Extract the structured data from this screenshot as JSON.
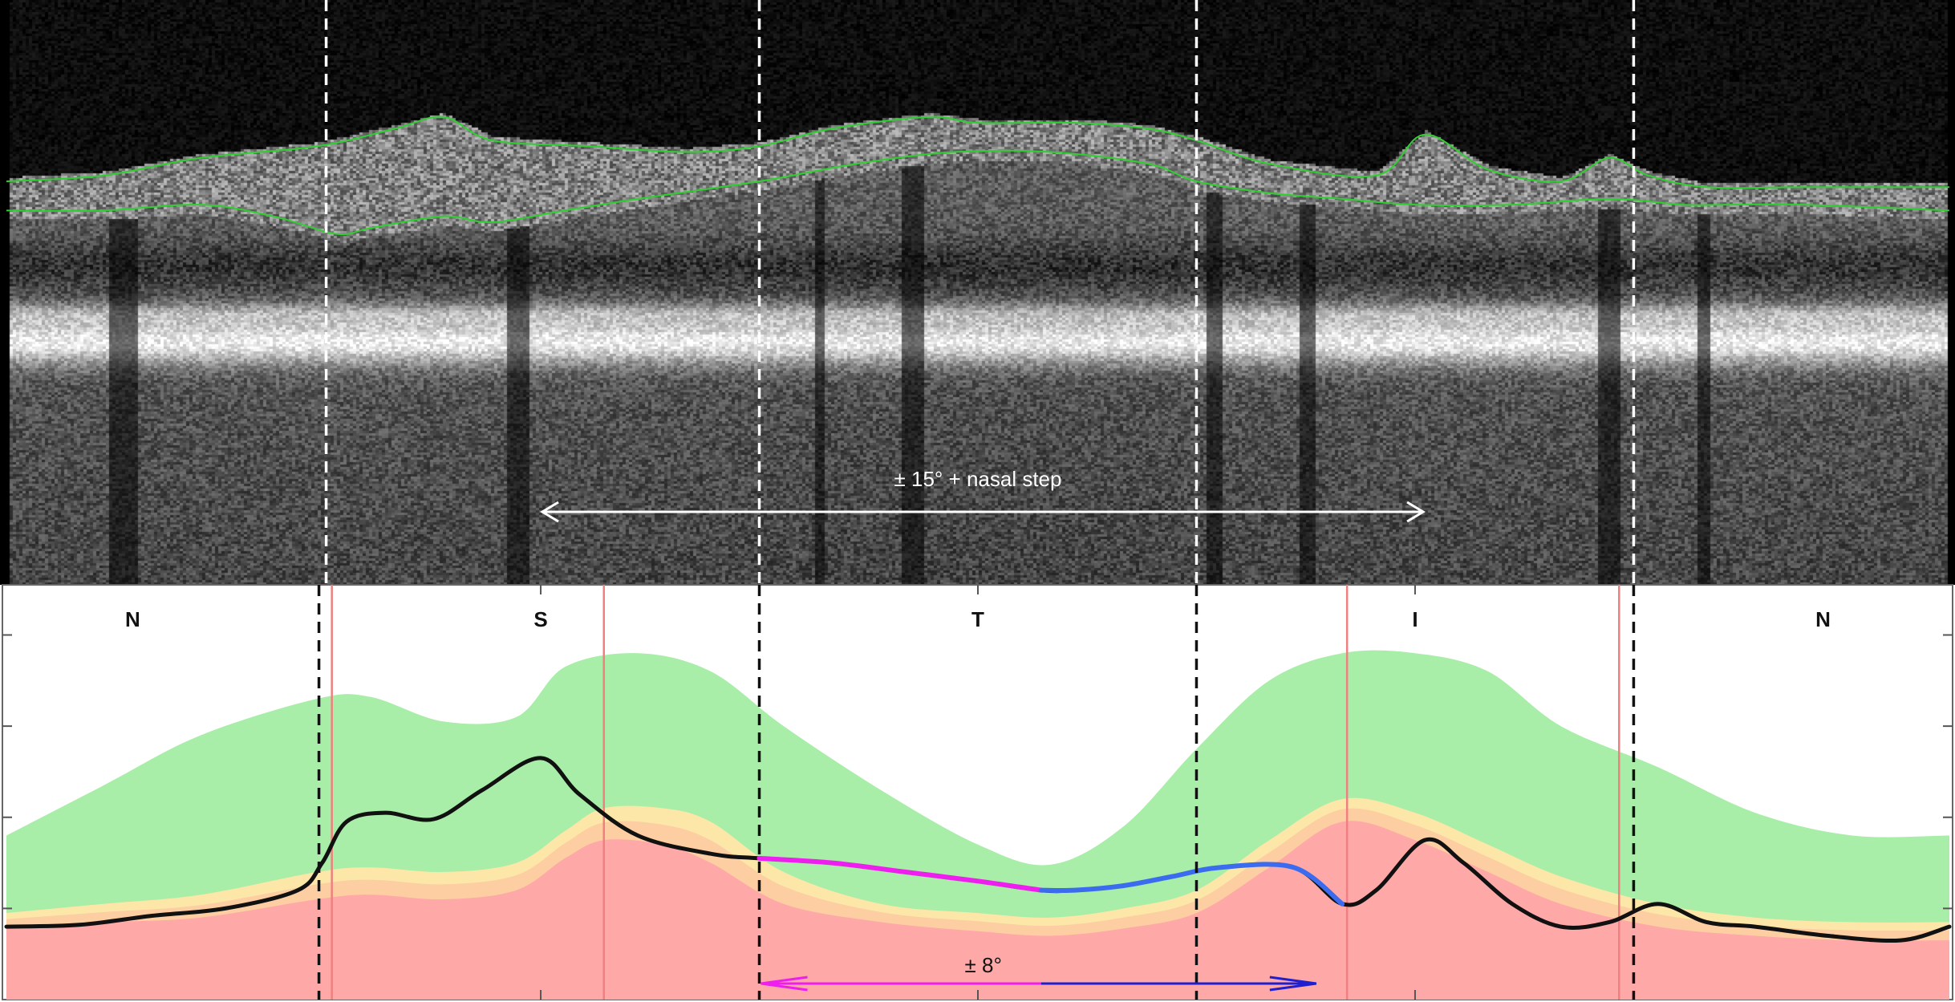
{
  "chart_data": {
    "type": "area",
    "title": "",
    "xlabel": "",
    "ylabel": "",
    "sector_labels": [
      {
        "label": "N",
        "x": 6
      },
      {
        "label": "S",
        "x": 90
      },
      {
        "label": "T",
        "x": 180
      },
      {
        "label": "I",
        "x": 270
      },
      {
        "label": "N",
        "x": 354
      }
    ],
    "sector_boundaries_x": [
      45,
      135,
      225,
      315
    ],
    "reference_lines_x": [
      47,
      103,
      256,
      312
    ],
    "xlim": [
      -20,
      380
    ],
    "ylim": [
      0,
      4.55
    ],
    "annotations": {
      "scan_range": "± 15° + nasal step",
      "arrow_range": "± 8°"
    },
    "series": [
      {
        "name": "",
        "role": "normal_range_upper",
        "color": "#a8eda8",
        "x": [
          -20,
          0,
          20,
          44,
          55,
          70,
          85,
          95,
          110,
          125,
          140,
          160,
          180,
          195,
          210,
          225,
          240,
          255,
          270,
          285,
          300,
          320,
          340,
          360,
          380
        ],
        "values": [
          1.8,
          2.35,
          2.9,
          3.3,
          3.32,
          3.05,
          3.1,
          3.65,
          3.8,
          3.6,
          3.0,
          2.3,
          1.7,
          1.48,
          1.9,
          2.75,
          3.5,
          3.8,
          3.8,
          3.6,
          3.0,
          2.55,
          2.05,
          1.8,
          1.8
        ]
      },
      {
        "name": "",
        "role": "borderline_band",
        "color": "#fde7a8",
        "x": [
          -20,
          0,
          20,
          44,
          55,
          70,
          85,
          95,
          103,
          115,
          125,
          140,
          160,
          180,
          195,
          210,
          225,
          240,
          255,
          270,
          285,
          300,
          320,
          340,
          360,
          380
        ],
        "values": [
          0.95,
          1.05,
          1.15,
          1.4,
          1.45,
          1.4,
          1.5,
          1.85,
          2.1,
          2.1,
          1.95,
          1.4,
          1.05,
          0.95,
          0.9,
          1.0,
          1.2,
          1.75,
          2.2,
          2.05,
          1.7,
          1.35,
          1.05,
          0.9,
          0.85,
          0.85
        ]
      },
      {
        "name": "",
        "role": "abnormal_band",
        "color": "#fea8a8",
        "x": [
          -20,
          0,
          20,
          44,
          55,
          70,
          85,
          95,
          103,
          115,
          125,
          140,
          160,
          180,
          195,
          210,
          225,
          240,
          255,
          270,
          285,
          300,
          320,
          340,
          360,
          380
        ],
        "values": [
          0.8,
          0.85,
          0.9,
          1.1,
          1.15,
          1.1,
          1.2,
          1.55,
          1.75,
          1.7,
          1.5,
          1.05,
          0.85,
          0.75,
          0.7,
          0.78,
          0.95,
          1.45,
          1.95,
          1.75,
          1.4,
          1.05,
          0.8,
          0.7,
          0.65,
          0.65
        ]
      },
      {
        "name": "",
        "role": "measured_profile",
        "color": "#111111",
        "x": [
          -20,
          -5,
          10,
          25,
          40,
          45,
          50,
          58,
          68,
          78,
          90,
          98,
          110,
          125,
          135,
          150,
          165,
          180,
          193,
          200,
          210,
          220,
          230,
          245,
          255,
          262,
          272,
          280,
          290,
          300,
          310,
          320,
          330,
          340,
          355,
          370,
          380
        ],
        "values": [
          0.8,
          0.82,
          0.92,
          1.0,
          1.2,
          1.5,
          1.95,
          2.05,
          1.98,
          2.3,
          2.65,
          2.25,
          1.8,
          1.6,
          1.55,
          1.5,
          1.4,
          1.3,
          1.2,
          1.2,
          1.25,
          1.35,
          1.45,
          1.45,
          1.05,
          1.2,
          1.75,
          1.5,
          1.05,
          0.8,
          0.85,
          1.05,
          0.85,
          0.8,
          0.7,
          0.65,
          0.8
        ]
      },
      {
        "name": "",
        "role": "highlight_left",
        "color": "#ee1fee",
        "x": [
          135,
          150,
          165,
          180,
          193
        ],
        "values": [
          1.55,
          1.5,
          1.4,
          1.3,
          1.2
        ]
      },
      {
        "name": "",
        "role": "highlight_right",
        "color": "#3b6cf0",
        "x": [
          193,
          200,
          210,
          220,
          230,
          245,
          255
        ],
        "values": [
          1.2,
          1.2,
          1.25,
          1.35,
          1.45,
          1.45,
          1.05
        ]
      }
    ],
    "boundary_traces": {
      "color": "#2fcf2f",
      "upper": {
        "x": [
          -20,
          0,
          20,
          44,
          60,
          70,
          80,
          100,
          120,
          135,
          150,
          170,
          180,
          200,
          215,
          225,
          240,
          262,
          272,
          285,
          300,
          310,
          318,
          330,
          350,
          380
        ],
        "y": [
          0.31,
          0.3,
          0.27,
          0.25,
          0.22,
          0.2,
          0.24,
          0.25,
          0.26,
          0.25,
          0.22,
          0.2,
          0.21,
          0.21,
          0.22,
          0.24,
          0.28,
          0.3,
          0.23,
          0.29,
          0.31,
          0.27,
          0.3,
          0.32,
          0.32,
          0.32
        ]
      },
      "lower": {
        "x": [
          -20,
          0,
          20,
          35,
          48,
          55,
          70,
          80,
          95,
          110,
          135,
          155,
          175,
          195,
          215,
          225,
          240,
          255,
          270,
          290,
          310,
          325,
          335,
          350,
          380
        ],
        "y": [
          0.36,
          0.36,
          0.35,
          0.37,
          0.4,
          0.39,
          0.37,
          0.38,
          0.36,
          0.34,
          0.31,
          0.28,
          0.26,
          0.26,
          0.28,
          0.31,
          0.33,
          0.34,
          0.35,
          0.35,
          0.34,
          0.35,
          0.35,
          0.35,
          0.36
        ]
      }
    },
    "grid": false,
    "legend": "none"
  }
}
